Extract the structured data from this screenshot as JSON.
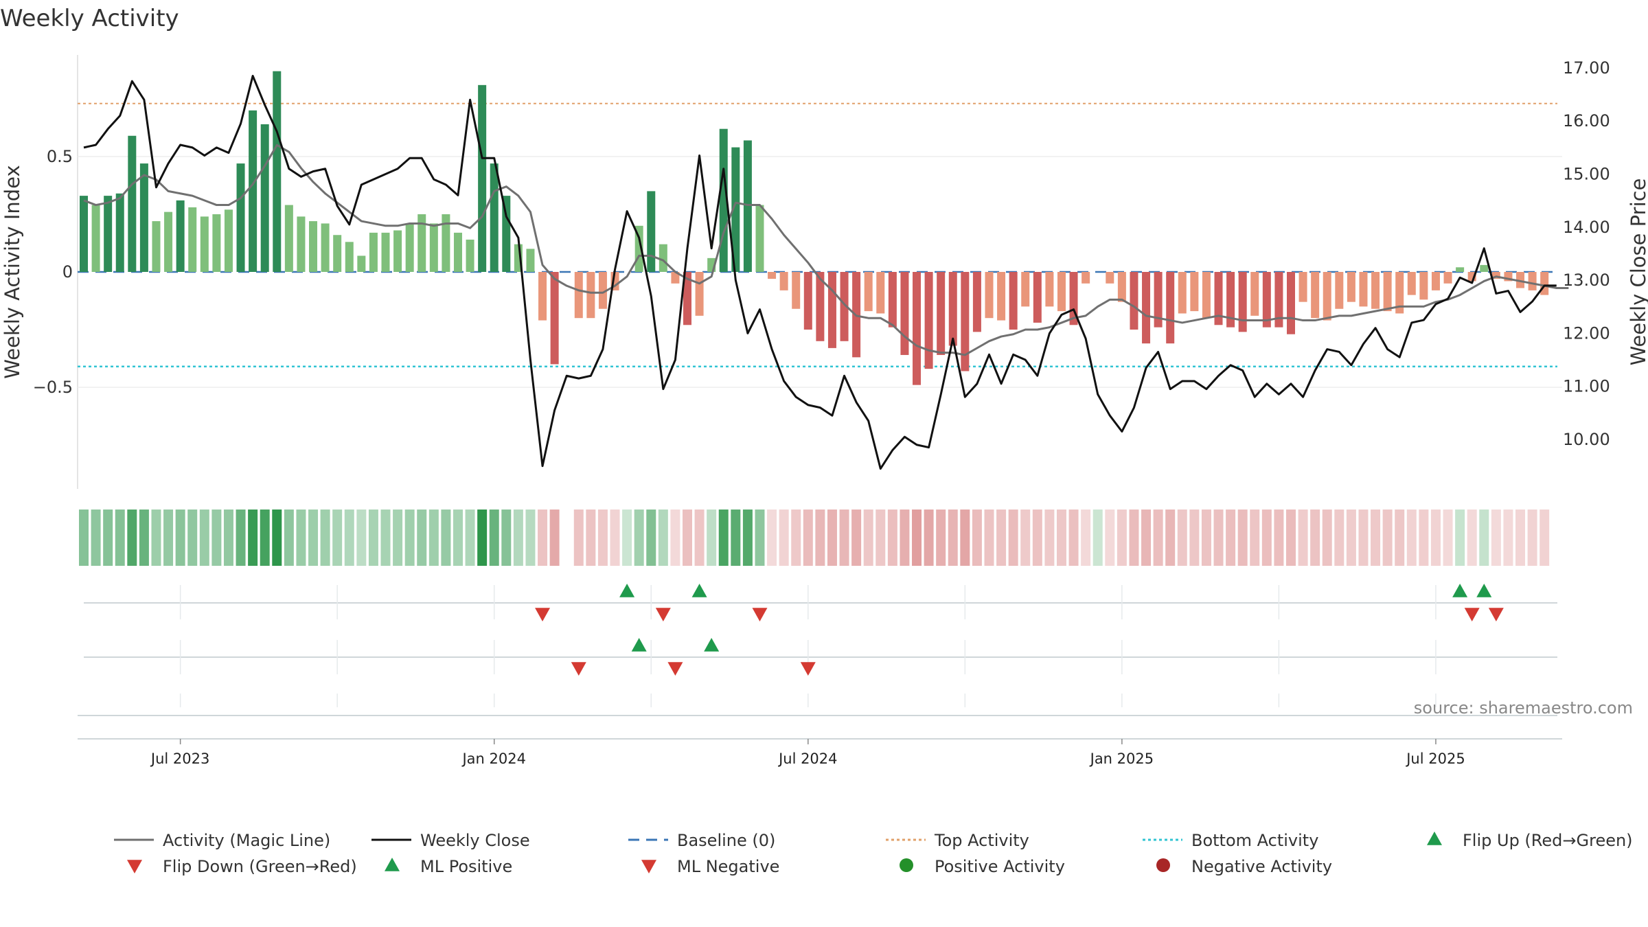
{
  "chart_data": {
    "type": "bar+line",
    "title": "Weekly Activity",
    "ylabel_left": "Weekly Activity Index",
    "ylabel_right": "Weekly Close Price",
    "yticks_left": [
      "0.5",
      "0",
      "−0.5"
    ],
    "yticks_right": [
      "17.00",
      "16.00",
      "15.00",
      "14.00",
      "13.00",
      "12.00",
      "11.00",
      "10.00"
    ],
    "ylim_left": [
      -0.94,
      0.94
    ],
    "ylim_right": [
      9.1,
      17.3
    ],
    "top_activity_level": 0.73,
    "bottom_activity_level": -0.41,
    "baseline_level": 0,
    "x_ticks": [
      "Jul 2023",
      "Jan 2024",
      "Jul 2024",
      "Jan 2025",
      "Jul 2025"
    ],
    "x_tick_week_index": [
      8,
      34,
      60,
      86,
      112
    ],
    "source": "source: sharemaestro.com",
    "activity": [
      0.33,
      0.29,
      0.33,
      0.34,
      0.59,
      0.47,
      0.22,
      0.26,
      0.31,
      0.28,
      0.24,
      0.25,
      0.27,
      0.47,
      0.7,
      0.64,
      0.87,
      0.29,
      0.24,
      0.22,
      0.21,
      0.16,
      0.13,
      0.07,
      0.17,
      0.17,
      0.18,
      0.21,
      0.25,
      0.21,
      0.25,
      0.17,
      0.14,
      0.81,
      0.47,
      0.33,
      0.12,
      0.1,
      -0.21,
      -0.4,
      0.0,
      -0.2,
      -0.2,
      -0.16,
      -0.08,
      0.0,
      0.2,
      0.35,
      0.12,
      -0.05,
      -0.23,
      -0.19,
      0.06,
      0.62,
      0.54,
      0.57,
      0.29,
      -0.03,
      -0.08,
      -0.16,
      -0.25,
      -0.3,
      -0.33,
      -0.3,
      -0.37,
      -0.17,
      -0.18,
      -0.24,
      -0.36,
      -0.49,
      -0.42,
      -0.36,
      -0.32,
      -0.43,
      -0.26,
      -0.2,
      -0.21,
      -0.25,
      -0.15,
      -0.22,
      -0.15,
      -0.17,
      -0.23,
      -0.05,
      0.0,
      -0.05,
      -0.13,
      -0.25,
      -0.31,
      -0.24,
      -0.31,
      -0.18,
      -0.17,
      -0.2,
      -0.23,
      -0.24,
      -0.26,
      -0.19,
      -0.24,
      -0.24,
      -0.27,
      -0.13,
      -0.2,
      -0.21,
      -0.16,
      -0.13,
      -0.15,
      -0.16,
      -0.17,
      -0.18,
      -0.1,
      -0.12,
      -0.08,
      -0.05,
      0.02,
      -0.04,
      0.03,
      -0.03,
      -0.04,
      -0.07,
      -0.08,
      -0.1
    ],
    "magic_line": [
      0.31,
      0.29,
      0.3,
      0.32,
      0.38,
      0.42,
      0.4,
      0.35,
      0.34,
      0.33,
      0.31,
      0.29,
      0.29,
      0.32,
      0.38,
      0.46,
      0.55,
      0.52,
      0.45,
      0.39,
      0.34,
      0.3,
      0.26,
      0.22,
      0.21,
      0.2,
      0.2,
      0.21,
      0.21,
      0.2,
      0.21,
      0.21,
      0.19,
      0.24,
      0.35,
      0.37,
      0.33,
      0.26,
      0.03,
      -0.03,
      -0.06,
      -0.08,
      -0.09,
      -0.09,
      -0.06,
      -0.02,
      0.07,
      0.07,
      0.05,
      0.0,
      -0.03,
      -0.05,
      -0.02,
      0.17,
      0.3,
      0.29,
      0.29,
      0.23,
      0.16,
      0.1,
      0.04,
      -0.03,
      -0.08,
      -0.14,
      -0.19,
      -0.2,
      -0.2,
      -0.23,
      -0.28,
      -0.32,
      -0.34,
      -0.35,
      -0.35,
      -0.36,
      -0.33,
      -0.3,
      -0.28,
      -0.27,
      -0.25,
      -0.25,
      -0.24,
      -0.22,
      -0.2,
      -0.19,
      -0.15,
      -0.12,
      -0.12,
      -0.15,
      -0.19,
      -0.2,
      -0.21,
      -0.22,
      -0.21,
      -0.2,
      -0.19,
      -0.2,
      -0.21,
      -0.21,
      -0.21,
      -0.2,
      -0.2,
      -0.21,
      -0.21,
      -0.2,
      -0.19,
      -0.19,
      -0.18,
      -0.17,
      -0.16,
      -0.15,
      -0.15,
      -0.15,
      -0.13,
      -0.12,
      -0.1,
      -0.07,
      -0.04,
      -0.02,
      -0.03,
      -0.04,
      -0.05,
      -0.06,
      -0.07,
      -0.07
    ],
    "weekly_close": [
      15.5,
      15.55,
      15.85,
      16.1,
      16.75,
      16.4,
      14.75,
      15.2,
      15.55,
      15.5,
      15.35,
      15.5,
      15.4,
      15.95,
      16.85,
      16.3,
      15.8,
      15.1,
      14.95,
      15.05,
      15.1,
      14.4,
      14.05,
      14.8,
      14.9,
      15.0,
      15.1,
      15.3,
      15.3,
      14.9,
      14.8,
      14.6,
      16.4,
      15.3,
      15.3,
      14.2,
      13.8,
      11.5,
      9.5,
      10.55,
      11.2,
      11.15,
      11.2,
      11.7,
      13.2,
      14.3,
      13.8,
      12.7,
      10.95,
      11.5,
      13.6,
      15.35,
      13.6,
      15.1,
      13.0,
      12.0,
      12.45,
      11.7,
      11.1,
      10.8,
      10.65,
      10.6,
      10.45,
      11.2,
      10.7,
      10.35,
      9.45,
      9.8,
      10.05,
      9.9,
      9.85,
      10.85,
      11.9,
      10.8,
      11.05,
      11.6,
      11.05,
      11.6,
      11.5,
      11.2,
      12.0,
      12.35,
      12.45,
      11.9,
      10.85,
      10.45,
      10.15,
      10.6,
      11.35,
      11.65,
      10.95,
      11.1,
      11.1,
      10.95,
      11.2,
      11.4,
      11.3,
      10.8,
      11.05,
      10.85,
      11.05,
      10.8,
      11.3,
      11.7,
      11.65,
      11.4,
      11.8,
      12.1,
      11.7,
      11.55,
      12.2,
      12.25,
      12.55,
      12.65,
      13.05,
      12.95,
      13.6,
      12.75,
      12.8,
      12.4,
      12.6,
      12.9,
      12.9
    ],
    "flip_up_weeks": [
      45,
      51,
      114,
      116
    ],
    "flip_down_weeks": [
      38,
      48,
      56,
      115,
      117
    ],
    "ml_positive_weeks": [
      46,
      52
    ],
    "ml_negative_weeks": [
      41,
      49,
      60
    ],
    "legend": [
      {
        "label": "Activity (Magic Line)",
        "kind": "line",
        "color": "#707070"
      },
      {
        "label": "Weekly Close",
        "kind": "line",
        "color": "#111111"
      },
      {
        "label": "Baseline (0)",
        "kind": "dashed",
        "color": "#3a76b5"
      },
      {
        "label": "Top Activity",
        "kind": "dotted",
        "color": "#e1a06a"
      },
      {
        "label": "Bottom Activity",
        "kind": "dotted",
        "color": "#31c4d3"
      },
      {
        "label": "Flip Up (Red→Green)",
        "kind": "triangle-up",
        "color": "#1f9a4c"
      },
      {
        "label": "Flip Down (Green→Red)",
        "kind": "triangle-down",
        "color": "#d43a32"
      },
      {
        "label": "ML Positive",
        "kind": "triangle-up",
        "color": "#1f9a4c"
      },
      {
        "label": "ML Negative",
        "kind": "triangle-down",
        "color": "#d43a32"
      },
      {
        "label": "Positive Activity",
        "kind": "circle",
        "color": "#24902a"
      },
      {
        "label": "Negative Activity",
        "kind": "circle",
        "color": "#a82626"
      }
    ]
  }
}
